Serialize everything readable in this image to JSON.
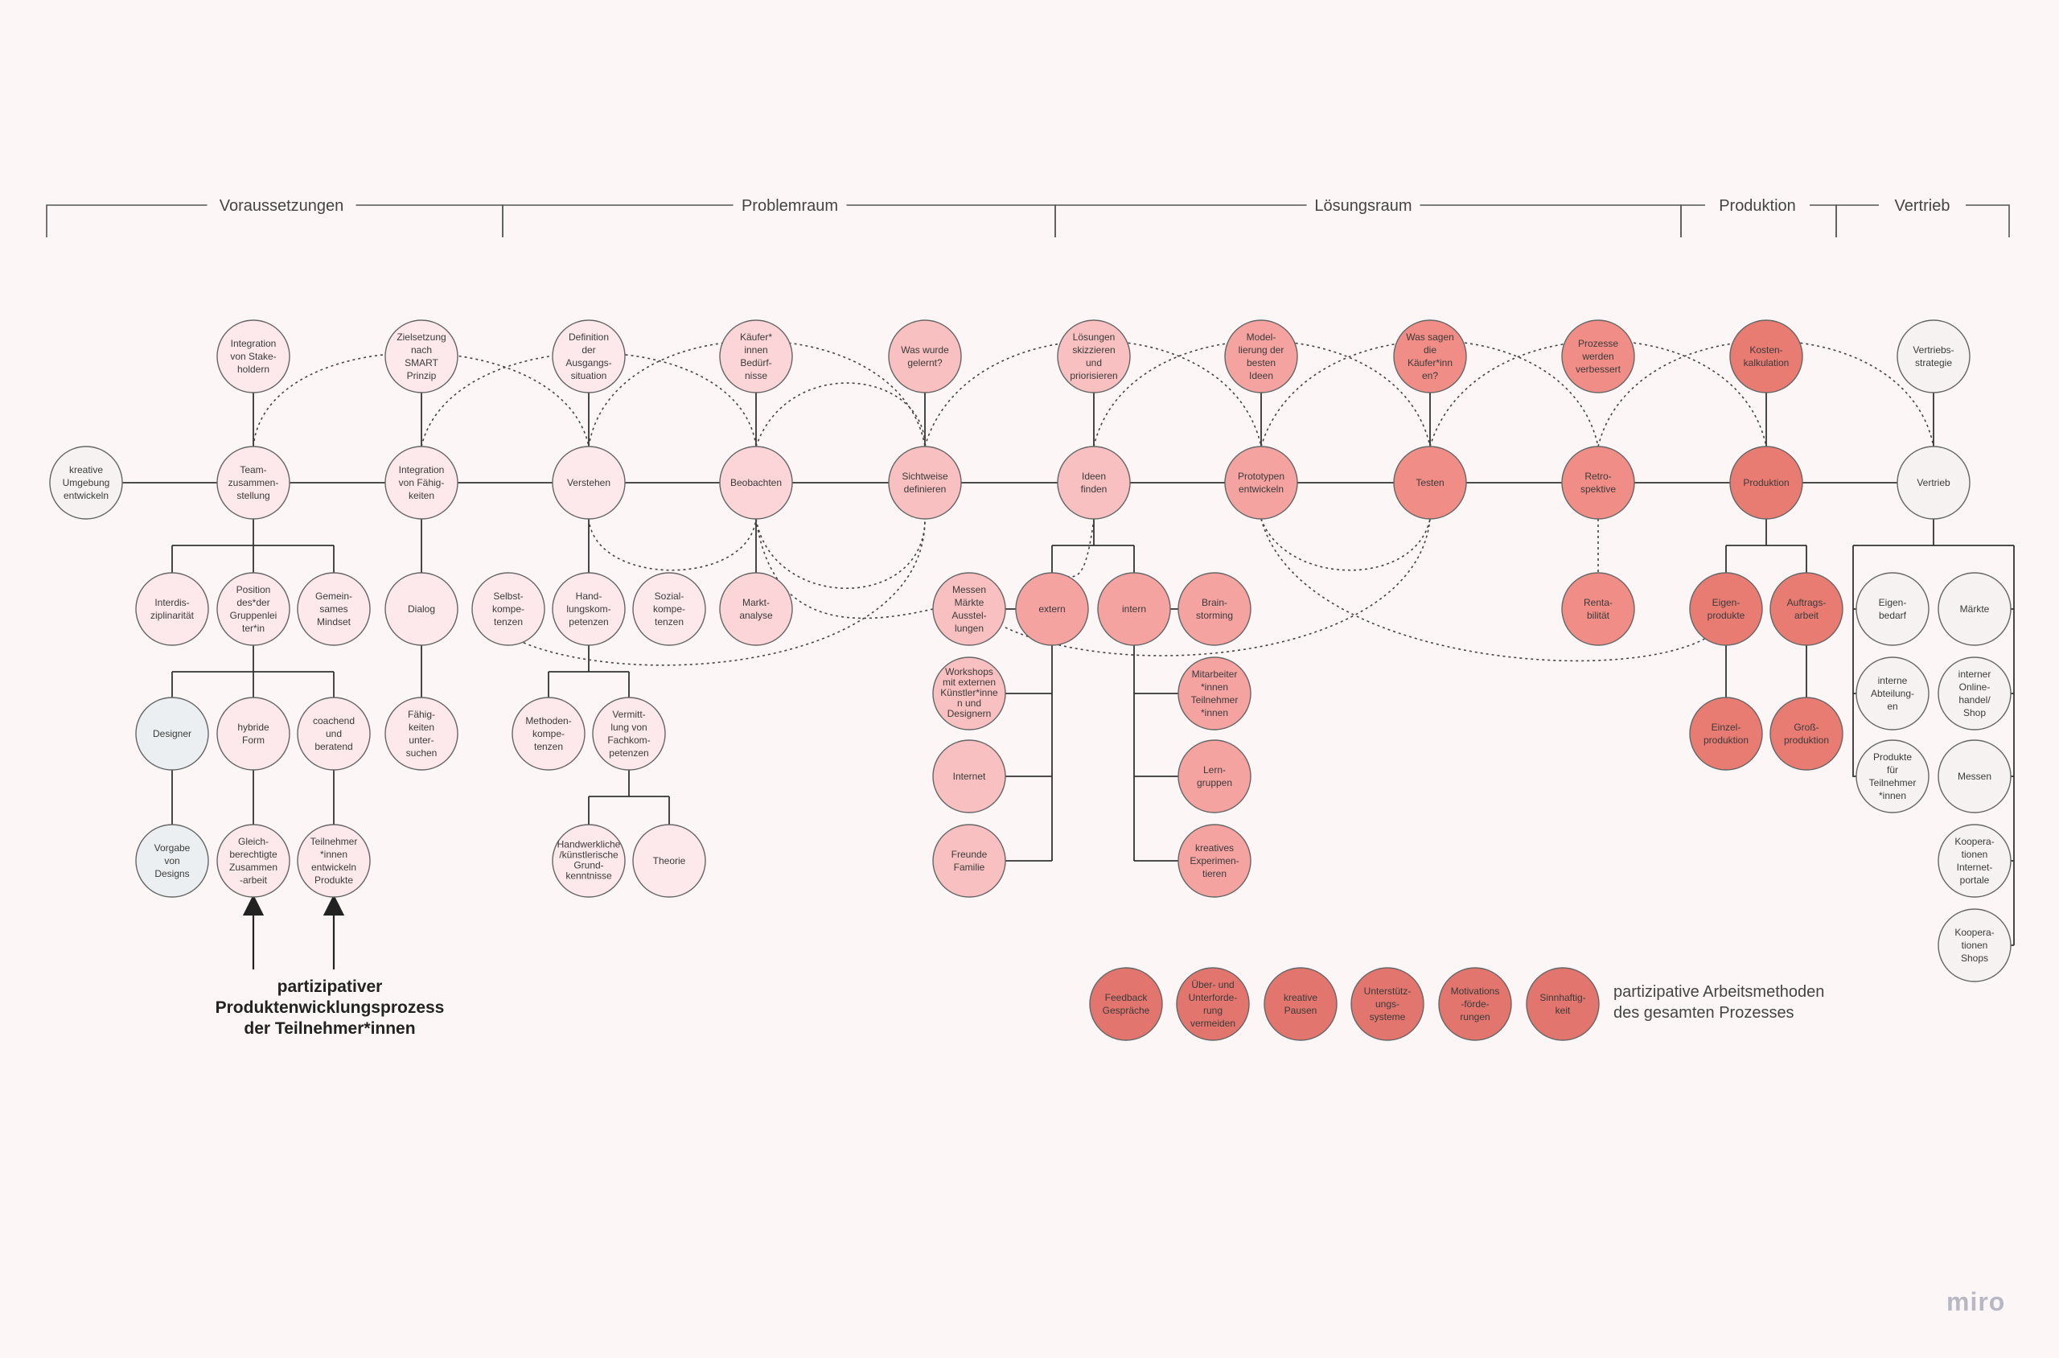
{
  "phases": [
    {
      "label": "Voraussetzungen"
    },
    {
      "label": "Problemraum"
    },
    {
      "label": "Lösungsraum"
    },
    {
      "label": "Produktion"
    },
    {
      "label": "Vertrieb"
    }
  ],
  "colors": {
    "c_white": "#f6f2f2",
    "c_gray": "#eceff1",
    "c_pink1": "#fde9ec",
    "c_pink2": "#fbd5d7",
    "c_pink3": "#f8c0c0",
    "c_pink4": "#f4a3a1",
    "c_red1": "#ef8d86",
    "c_red2": "#e87c73",
    "c_red3": "#e2766e",
    "stroke": "#666666",
    "line": "#333333"
  },
  "nodes": {
    "kreative_umgebung": "kreative\nUmgebung\nentwickeln",
    "integration_stakeholdern": "Integration\nvon Stake-\nholdern",
    "team": "Team-\nzusammen-\nstellung",
    "interdis": "Interdis-\nziplinarität",
    "position": "Position\ndes*der\nGruppenlei\nter*in",
    "gemeinsames": "Gemein-\nsames\nMindset",
    "designer": "Designer",
    "hybride": "hybride\nForm",
    "coachend": "coachend\nund\nberatend",
    "vorgabe": "Vorgabe\nvon\nDesigns",
    "gleichberechtigte": "Gleich-\nberechtigte\nZusammen\n-arbeit",
    "teilnehmer_entwickeln": "Teilnehmer\n*innen\nentwickeln\nProdukte",
    "zielsetzung": "Zielsetzung\nnach\nSMART\nPrinzip",
    "integration_faehig": "Integration\nvon Fähig-\nkeiten",
    "dialog": "Dialog",
    "faehigkeiten": "Fähig-\nkeiten\nunter-\nsuchen",
    "definition": "Definition\nder\nAusgangs-\nsituation",
    "verstehen": "Verstehen",
    "selbst": "Selbst-\nkompe-\ntenzen",
    "handlungs": "Hand-\nlungskom-\npetenzen",
    "sozial": "Sozial-\nkompe-\ntenzen",
    "methoden": "Methoden-\nkompe-\ntenzen",
    "vermittlung": "Vermitt-\nlung von\nFachkom-\npetenzen",
    "handwerkliche": "Handwerkliche\n/künstlerische\nGrund-\nkenntnisse",
    "theorie": "Theorie",
    "kaeufer_beduerfnisse": "Käufer*\ninnen\nBedürf-\nnisse",
    "beobachten": "Beobachten",
    "marktanalyse": "Markt-\nanalyse",
    "was_gelernt": "Was wurde\ngelernt?",
    "sichtweise": "Sichtweise\ndefinieren",
    "messen_maerkte": "Messen\nMärkte\nAusstel-\nlungen",
    "workshops": "Workshops\nmit externen\nKünstler*inne\nn und\nDesignern",
    "internet": "Internet",
    "freunde": "Freunde\nFamilie",
    "loesungen": "Lösungen\nskizzieren\nund\npriorisieren",
    "ideen": "Ideen\nfinden",
    "extern": "extern",
    "intern": "intern",
    "brainstorming": "Brain-\nstorming",
    "mitarbeiter": "Mitarbeiter\n*innen\nTeilnehmer\n*innen",
    "lerngruppen": "Lern-\ngruppen",
    "kreatives_exp": "kreatives\nExperimen-\ntieren",
    "modellierung": "Model-\nlierung der\nbesten\nIdeen",
    "prototypen": "Prototypen\nentwickeln",
    "was_sagen": "Was sagen\ndie\nKäufer*inn\nen?",
    "testen": "Testen",
    "prozesse": "Prozesse\nwerden\nverbessert",
    "retrospektive": "Retro-\nspektive",
    "rentabilitaet": "Renta-\nbilität",
    "kostenkalkulation": "Kosten-\nkalkulation",
    "produktion": "Produktion",
    "eigenprodukte": "Eigen-\nprodukte",
    "auftragsarbeit": "Auftrags-\narbeit",
    "einzelproduktion": "Einzel-\nproduktion",
    "grossproduktion": "Groß-\nproduktion",
    "vertriebsstrategie": "Vertriebs-\nstrategie",
    "vertrieb": "Vertrieb",
    "eigenbedarf": "Eigen-\nbedarf",
    "maerkte": "Märkte",
    "interne_abteilungen": "interne\nAbteilung-\nen",
    "online_handel": "interner\nOnline-\nhandel/\nShop",
    "produkte_teilnehmer": "Produkte\nfür\nTeilnehmer\n*innen",
    "messen": "Messen",
    "kooperationen_internet": "Koopera-\ntionen\nInternet-\nportale",
    "kooperationen_shops": "Koopera-\ntionen\nShops",
    "feedback": "Feedback\nGespräche",
    "ueberforderung": "Über- und\nUnterforde-\nrung\nvermeiden",
    "kreative_pausen": "kreative\nPausen",
    "unterstuetzung": "Unterstütz-\nungs-\nsysteme",
    "motivation": "Motivations\n-förde-\nrungen",
    "sinnhaftigkeit": "Sinnhaftig-\nkeit"
  },
  "notes": {
    "participatory": [
      "partizipativer",
      "Produktenwicklungsprozess",
      "der Teilnehmer*innen"
    ],
    "methods": [
      "partizipative Arbeitsmethoden",
      "des gesamten Prozesses"
    ]
  },
  "watermark": "miro"
}
